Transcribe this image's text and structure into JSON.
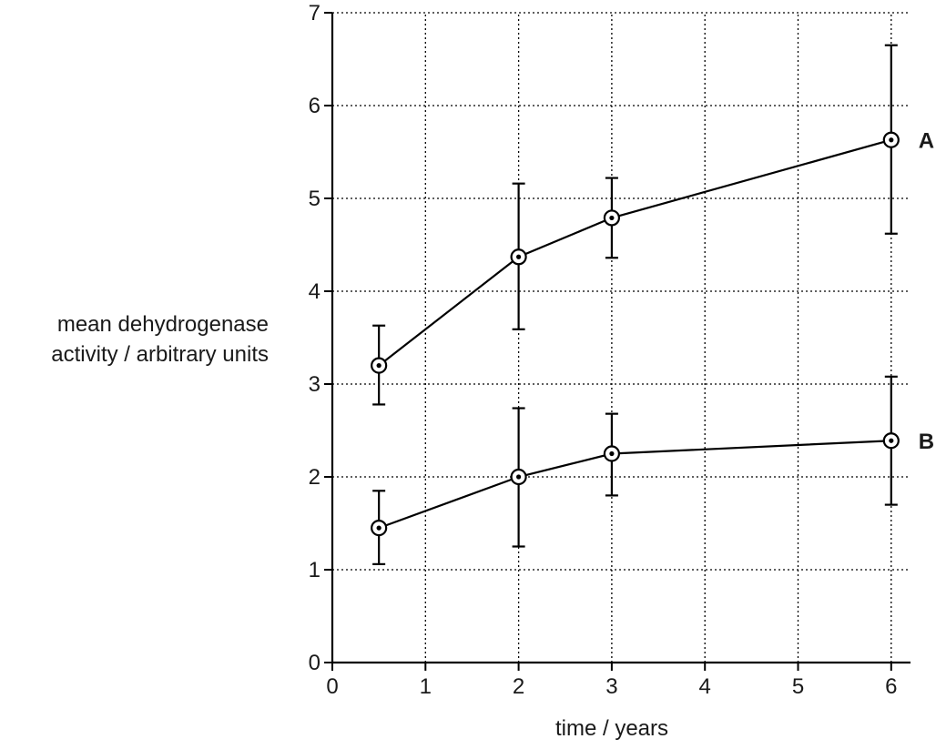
{
  "chart_data": {
    "type": "line",
    "xlabel": "time / years",
    "ylabel_lines": [
      "mean dehydrogenase",
      "activity / arbitrary units"
    ],
    "xlim": [
      0,
      6.2
    ],
    "ylim": [
      0,
      7
    ],
    "x_ticks": [
      0,
      1,
      2,
      3,
      4,
      5,
      6
    ],
    "y_ticks": [
      0,
      1,
      2,
      3,
      4,
      5,
      6,
      7
    ],
    "grid": true,
    "grid_style": "dotted",
    "line_color": "#000000",
    "series": [
      {
        "name": "A",
        "points": [
          {
            "x": 0.5,
            "y": 3.2,
            "err_low": 2.78,
            "err_high": 3.63
          },
          {
            "x": 2,
            "y": 4.37,
            "err_low": 3.59,
            "err_high": 5.16
          },
          {
            "x": 3,
            "y": 4.79,
            "err_low": 4.36,
            "err_high": 5.22
          },
          {
            "x": 6,
            "y": 5.63,
            "err_low": 4.62,
            "err_high": 6.65
          }
        ]
      },
      {
        "name": "B",
        "points": [
          {
            "x": 0.5,
            "y": 1.45,
            "err_low": 1.06,
            "err_high": 1.85
          },
          {
            "x": 2,
            "y": 2.0,
            "err_low": 1.25,
            "err_high": 2.74
          },
          {
            "x": 3,
            "y": 2.25,
            "err_low": 1.8,
            "err_high": 2.68
          },
          {
            "x": 6,
            "y": 2.39,
            "err_low": 1.7,
            "err_high": 3.08
          }
        ]
      }
    ]
  }
}
